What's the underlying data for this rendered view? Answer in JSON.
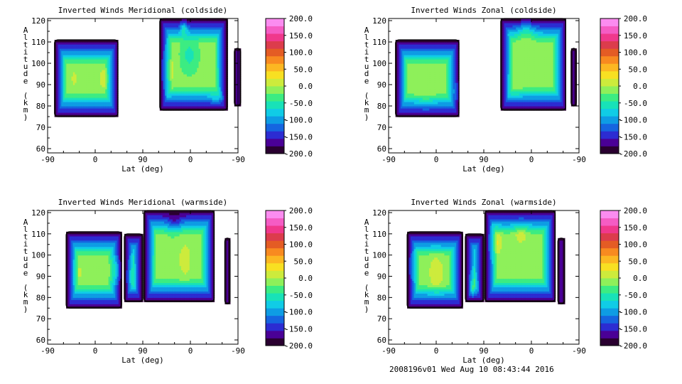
{
  "footer": "2008196v01 Wed Aug 10 08:43:44 2016",
  "colorbar_colors": [
    "#2a0030",
    "#4a0096",
    "#2c2cd2",
    "#1565e0",
    "#0e9ce4",
    "#10cce6",
    "#18e2b8",
    "#3cec82",
    "#8ef05a",
    "#cdeb3c",
    "#f8e022",
    "#fcb722",
    "#f88a20",
    "#e45c24",
    "#dc3c4c",
    "#f0388c",
    "#f55cc4",
    "#fb8cf0"
  ],
  "chart_data": [
    {
      "type": "heatmap",
      "title": "Inverted Winds Meridional (coldside)",
      "xlabel": "Lat (deg)",
      "ylabel": "Altitude (km)",
      "x_ticks": [
        "-90",
        "0",
        "90",
        "0",
        "-90"
      ],
      "y_ticks": [
        "60",
        "70",
        "80",
        "90",
        "100",
        "110",
        "120"
      ],
      "ylim": [
        58,
        121
      ],
      "colorbar_ticks": [
        "200.0",
        "150.0",
        "100.0",
        "50.0",
        "0.0",
        "-50.0",
        "-100.0",
        "-150.0",
        "-200.0"
      ],
      "clim": [
        -200,
        200
      ],
      "blocks": [
        {
          "x": [
            -77,
            43
          ],
          "y": [
            75,
            111
          ],
          "features": [
            [
              -40,
              93,
              25,
              8,
              6
            ],
            [
              15,
              93,
              40,
              8,
              5
            ]
          ]
        },
        {
          "x": [
            122,
            250
          ],
          "y": [
            78,
            121
          ],
          "features": [
            [
              168,
              117,
              65,
              7,
              3
            ],
            [
              178,
              104,
              -35,
              12,
              6
            ],
            [
              140,
              97,
              35,
              10,
              8
            ],
            [
              228,
              84,
              25,
              10,
              3
            ]
          ]
        },
        {
          "x": [
            263,
            275
          ],
          "y": [
            80,
            107
          ],
          "features": []
        }
      ]
    },
    {
      "type": "heatmap",
      "title": "Inverted Winds Zonal (coldside)",
      "xlabel": "Lat (deg)",
      "ylabel": "Altitude (km)",
      "x_ticks": [
        "-90",
        "0",
        "90",
        "0",
        "-90"
      ],
      "y_ticks": [
        "60",
        "70",
        "80",
        "90",
        "100",
        "110",
        "120"
      ],
      "ylim": [
        58,
        121
      ],
      "colorbar_ticks": [
        "200.0",
        "150.0",
        "100.0",
        "50.0",
        "0.0",
        "-50.0",
        "-100.0",
        "-150.0",
        "-200.0"
      ],
      "clim": [
        -200,
        200
      ],
      "blocks": [
        {
          "x": [
            -77,
            43
          ],
          "y": [
            75,
            111
          ],
          "features": [
            [
              -20,
              87,
              20,
              18,
              8
            ],
            [
              40,
              87,
              30,
              8,
              5
            ]
          ]
        },
        {
          "x": [
            122,
            245
          ],
          "y": [
            78,
            121
          ],
          "features": [
            [
              170,
              115,
              45,
              18,
              5
            ],
            [
              150,
              88,
              15,
              12,
              6
            ]
          ]
        },
        {
          "x": [
            255,
            265
          ],
          "y": [
            80,
            107
          ],
          "features": []
        }
      ]
    },
    {
      "type": "heatmap",
      "title": "Inverted Winds Meridional (warmside)",
      "xlabel": "Lat (deg)",
      "ylabel": "Altitude (km)",
      "x_ticks": [
        "-90",
        "0",
        "90",
        "0",
        "-90"
      ],
      "y_ticks": [
        "60",
        "70",
        "80",
        "90",
        "100",
        "110",
        "120"
      ],
      "ylim": [
        58,
        121
      ],
      "colorbar_ticks": [
        "200.0",
        "150.0",
        "100.0",
        "50.0",
        "0.0",
        "-50.0",
        "-100.0",
        "-150.0",
        "-200.0"
      ],
      "clim": [
        -200,
        200
      ],
      "blocks": [
        {
          "x": [
            -55,
            50
          ],
          "y": [
            75,
            111
          ],
          "features": [
            [
              -30,
              92,
              25,
              8,
              5
            ],
            [
              40,
              93,
              50,
              8,
              5
            ]
          ]
        },
        {
          "x": [
            55,
            90
          ],
          "y": [
            78,
            110
          ],
          "features": [
            [
              68,
              90,
              35,
              6,
              6
            ]
          ]
        },
        {
          "x": [
            92,
            225
          ],
          "y": [
            78,
            121
          ],
          "features": [
            [
              170,
              98,
              40,
              12,
              8
            ],
            [
              150,
              115,
              -40,
              12,
              4
            ]
          ]
        },
        {
          "x": [
            245,
            255
          ],
          "y": [
            77,
            108
          ],
          "features": []
        }
      ]
    },
    {
      "type": "heatmap",
      "title": "Inverted Winds Zonal (warmside)",
      "xlabel": "Lat (deg)",
      "ylabel": "Altitude (km)",
      "x_ticks": [
        "-90",
        "0",
        "90",
        "0",
        "-90"
      ],
      "y_ticks": [
        "60",
        "70",
        "80",
        "90",
        "100",
        "110",
        "120"
      ],
      "ylim": [
        58,
        121
      ],
      "colorbar_ticks": [
        "200.0",
        "150.0",
        "100.0",
        "50.0",
        "0.0",
        "-50.0",
        "-100.0",
        "-150.0",
        "-200.0"
      ],
      "clim": [
        -200,
        200
      ],
      "blocks": [
        {
          "x": [
            -55,
            50
          ],
          "y": [
            75,
            111
          ],
          "features": [
            [
              0,
              92,
              40,
              15,
              8
            ],
            [
              -45,
              95,
              15,
              8,
              5
            ]
          ]
        },
        {
          "x": [
            55,
            90
          ],
          "y": [
            78,
            110
          ],
          "features": [
            [
              70,
              85,
              50,
              6,
              5
            ]
          ]
        },
        {
          "x": [
            92,
            225
          ],
          "y": [
            78,
            121
          ],
          "features": [
            [
              115,
              106,
              45,
              10,
              6
            ],
            [
              160,
              110,
              30,
              15,
              6
            ]
          ]
        },
        {
          "x": [
            230,
            243
          ],
          "y": [
            77,
            108
          ],
          "features": []
        }
      ]
    }
  ]
}
